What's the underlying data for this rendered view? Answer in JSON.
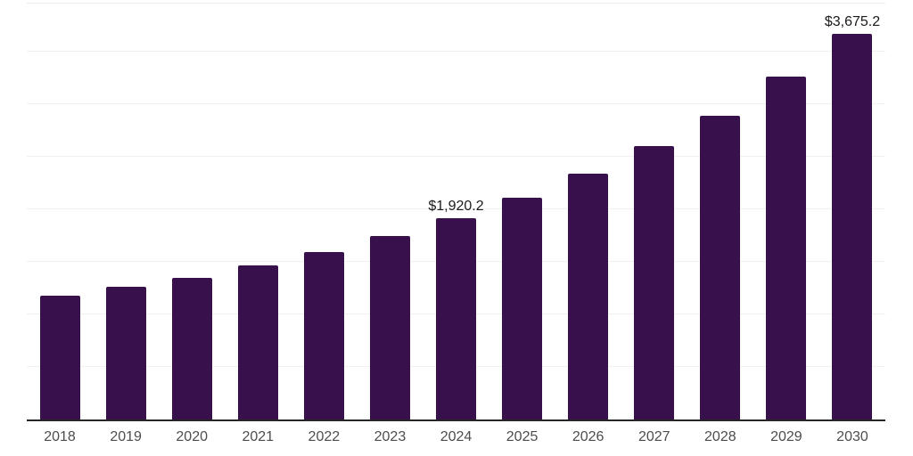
{
  "chart_data": {
    "type": "bar",
    "title": "",
    "xlabel": "",
    "ylabel": "",
    "categories": [
      "2018",
      "2019",
      "2020",
      "2021",
      "2022",
      "2023",
      "2024",
      "2025",
      "2026",
      "2027",
      "2028",
      "2029",
      "2030"
    ],
    "values": [
      1175,
      1260,
      1345,
      1465,
      1595,
      1745,
      1920.2,
      2110,
      2340,
      2600,
      2890,
      3265,
      3675.2
    ],
    "data_labels": {
      "2024": "$1,920.2",
      "2030": "$3,675.2"
    },
    "ylim": [
      0,
      3960
    ],
    "gridline_interval": 500,
    "legend": "none",
    "y_axis_tick_labels": "none",
    "colors": {
      "bar": "#38114C",
      "axis_line": "#262626",
      "gridline": "#f0f0f0",
      "plot_top_border": "#ededed",
      "value_label_text": "#1a1a1a",
      "x_tick_text": "#4d4d4d",
      "background": "#ffffff"
    }
  }
}
